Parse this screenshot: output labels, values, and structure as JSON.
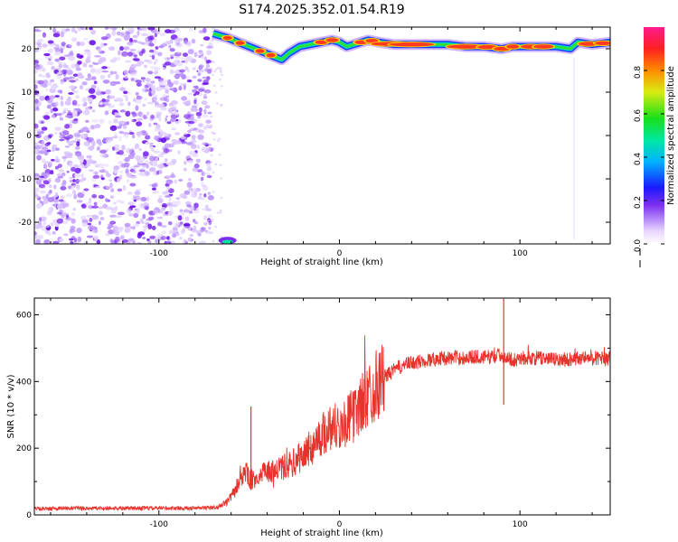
{
  "title": "S174.2025.352.01.54.R19",
  "chart_data": [
    {
      "type": "heatmap",
      "xlabel": "Height of straight line (km)",
      "ylabel": "Frequency (Hz)",
      "xlim": [
        -169,
        150
      ],
      "ylim": [
        -25,
        25
      ],
      "xticks": [
        -100,
        0,
        100
      ],
      "yticks": [
        -20,
        -10,
        0,
        10,
        20
      ],
      "noise_region": {
        "x": [
          -169,
          -71
        ],
        "level": "low, speckled purple"
      },
      "ridge": {
        "x": [
          -70,
          -62,
          -56,
          -50,
          -44,
          -38,
          -32,
          -28,
          -22,
          -16,
          -10,
          -4,
          0,
          4,
          8,
          12,
          16,
          22,
          30,
          40,
          50,
          60,
          70,
          80,
          90,
          96,
          100,
          110,
          120,
          128,
          132,
          140,
          150
        ],
        "freq": [
          23.5,
          22.5,
          21.5,
          20.5,
          19.5,
          18.5,
          17.5,
          19.0,
          20.5,
          21.0,
          21.5,
          22.0,
          21.5,
          20.5,
          21.0,
          21.5,
          22.0,
          21.5,
          21.0,
          21.0,
          21.0,
          21.0,
          20.5,
          20.5,
          20.0,
          20.5,
          20.5,
          20.5,
          20.5,
          20.0,
          21.5,
          21.0,
          21.5
        ]
      },
      "colorbar": {
        "label": "Normalized spectral amplitude",
        "ticks": [
          "0.0",
          "0.2",
          "0.4",
          "0.6",
          "0.8"
        ],
        "range": [
          0,
          1
        ]
      }
    },
    {
      "type": "line",
      "xlabel": "Height of straight line (km)",
      "ylabel": "SNR (10 * v/v)",
      "xlim": [
        -169,
        150
      ],
      "ylim": [
        0,
        650
      ],
      "xticks": [
        -100,
        0,
        100
      ],
      "yticks": [
        0,
        200,
        400,
        600
      ],
      "color": "#e8322c",
      "series": [
        {
          "name": "SNR",
          "x": [
            -169,
            -140,
            -110,
            -80,
            -68,
            -62,
            -58,
            -55,
            -52,
            -49,
            -46,
            -43,
            -40,
            -36,
            -32,
            -28,
            -24,
            -20,
            -16,
            -12,
            -8,
            -4,
            0,
            4,
            8,
            12,
            16,
            20,
            24,
            28,
            32,
            36,
            40,
            45,
            50,
            55,
            60,
            65,
            70,
            75,
            80,
            85,
            90,
            93,
            96,
            100,
            105,
            110,
            115,
            120,
            125,
            130,
            135,
            140,
            145,
            150
          ],
          "values": [
            18,
            20,
            20,
            20,
            22,
            40,
            70,
            110,
            130,
            100,
            110,
            120,
            130,
            130,
            140,
            150,
            160,
            180,
            200,
            225,
            250,
            270,
            265,
            280,
            300,
            330,
            360,
            390,
            410,
            425,
            440,
            450,
            455,
            460,
            465,
            470,
            470,
            472,
            470,
            475,
            472,
            475,
            480,
            470,
            465,
            470,
            470,
            470,
            470,
            465,
            465,
            470,
            470,
            470,
            470,
            470
          ]
        }
      ],
      "spikes": [
        {
          "x": -49,
          "value": 325
        },
        {
          "x": 91,
          "value": 648
        },
        {
          "x": 91,
          "value": 330
        }
      ]
    }
  ]
}
